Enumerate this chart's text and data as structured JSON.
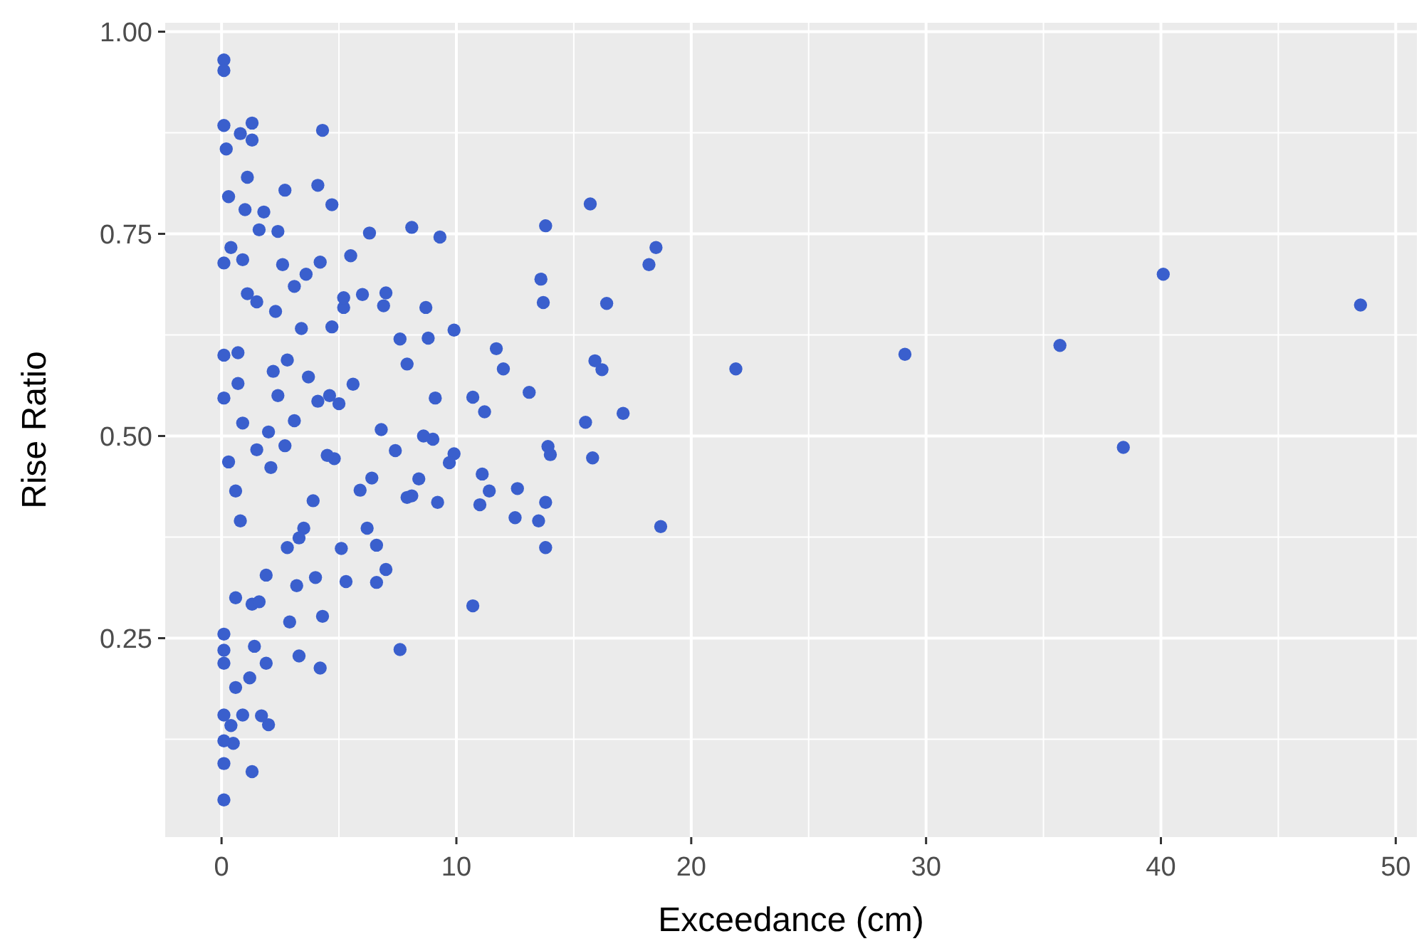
{
  "chart_data": {
    "type": "scatter",
    "xlabel": "Exceedance (cm)",
    "ylabel": "Rise Ratio",
    "xlim": [
      -2.4,
      50.9
    ],
    "ylim": [
      0.004,
      1.011
    ],
    "xticks": [
      0,
      10,
      20,
      30,
      40,
      50
    ],
    "yticks": [
      {
        "value": 0.25,
        "label": "0.25"
      },
      {
        "value": 0.5,
        "label": "0.50"
      },
      {
        "value": 0.75,
        "label": "0.75"
      },
      {
        "value": 1,
        "label": "1.00"
      }
    ],
    "grid": true,
    "marker": "circle",
    "series": [
      {
        "color": "#3a5fcd",
        "x": [
          48.5,
          40.1,
          38.4,
          35.7,
          29.1,
          21.9,
          18.7,
          18.5,
          18.2,
          17.1,
          16.4,
          16.2,
          15.9,
          15.7,
          15.8,
          15.5,
          14.0,
          13.9,
          13.8,
          13.7,
          13.6,
          13.8,
          13.8,
          13.5,
          13.1,
          12.6,
          12.5,
          12.0,
          11.7,
          11.4,
          11.2,
          11.1,
          11.0,
          10.7,
          10.7,
          9.9,
          9.9,
          9.7,
          9.3,
          9.2,
          9.1,
          9.0,
          8.8,
          8.7,
          8.6,
          8.4,
          8.1,
          8.1,
          7.9,
          7.9,
          7.6,
          7.6,
          7.4,
          7.0,
          7.0,
          6.9,
          6.8,
          6.6,
          6.6,
          6.4,
          6.3,
          6.2,
          6.0,
          5.9,
          5.6,
          5.5,
          5.3,
          5.2,
          5.2,
          5.1,
          5.0,
          4.8,
          4.7,
          4.7,
          4.6,
          4.5,
          4.3,
          4.3,
          4.2,
          4.2,
          4.1,
          4.0,
          4.1,
          3.9,
          3.7,
          3.6,
          3.5,
          3.4,
          3.3,
          3.3,
          3.1,
          3.1,
          2.9,
          2.8,
          2.7,
          2.7,
          2.6,
          2.4,
          2.3,
          2.2,
          2.1,
          2.0,
          1.9,
          1.9,
          1.8,
          1.6,
          1.5,
          1.4,
          1.3,
          1.3,
          1.3,
          1.1,
          1.1,
          1.2,
          1.3,
          0.9,
          0.8,
          0.7,
          0.6,
          0.6,
          0.5,
          0.3,
          0.3,
          0.2,
          0.1,
          0.1,
          0.1,
          0.1,
          0.1,
          0.1,
          0.1,
          0.1,
          0.1,
          0.1,
          0.1,
          0.1,
          0.1,
          0.4,
          0.9,
          1.7,
          0.6,
          0.9,
          1.0,
          0.7,
          2.8,
          3.2,
          1.6,
          2.4,
          0.8,
          1.5,
          2.0,
          0.4
        ],
        "values": [
          0.662,
          0.7,
          0.486,
          0.612,
          0.601,
          0.583,
          0.388,
          0.733,
          0.712,
          0.528,
          0.664,
          0.582,
          0.593,
          0.787,
          0.473,
          0.517,
          0.477,
          0.487,
          0.76,
          0.665,
          0.694,
          0.418,
          0.362,
          0.395,
          0.554,
          0.435,
          0.399,
          0.583,
          0.608,
          0.432,
          0.53,
          0.453,
          0.415,
          0.548,
          0.29,
          0.478,
          0.631,
          0.467,
          0.746,
          0.418,
          0.547,
          0.496,
          0.621,
          0.659,
          0.5,
          0.447,
          0.758,
          0.426,
          0.424,
          0.589,
          0.236,
          0.62,
          0.482,
          0.677,
          0.335,
          0.661,
          0.508,
          0.319,
          0.365,
          0.448,
          0.751,
          0.386,
          0.675,
          0.433,
          0.564,
          0.723,
          0.32,
          0.659,
          0.671,
          0.361,
          0.54,
          0.472,
          0.635,
          0.786,
          0.55,
          0.476,
          0.878,
          0.277,
          0.213,
          0.715,
          0.81,
          0.325,
          0.543,
          0.42,
          0.573,
          0.7,
          0.386,
          0.633,
          0.374,
          0.228,
          0.685,
          0.519,
          0.27,
          0.594,
          0.804,
          0.488,
          0.712,
          0.753,
          0.654,
          0.58,
          0.461,
          0.143,
          0.219,
          0.328,
          0.777,
          0.755,
          0.483,
          0.24,
          0.887,
          0.866,
          0.292,
          0.82,
          0.676,
          0.201,
          0.085,
          0.718,
          0.874,
          0.565,
          0.3,
          0.189,
          0.12,
          0.796,
          0.468,
          0.855,
          0.965,
          0.952,
          0.884,
          0.714,
          0.6,
          0.547,
          0.255,
          0.235,
          0.219,
          0.155,
          0.123,
          0.095,
          0.05,
          0.142,
          0.155,
          0.154,
          0.432,
          0.516,
          0.78,
          0.603,
          0.362,
          0.315,
          0.295,
          0.55,
          0.395,
          0.666,
          0.505,
          0.733
        ]
      }
    ]
  }
}
